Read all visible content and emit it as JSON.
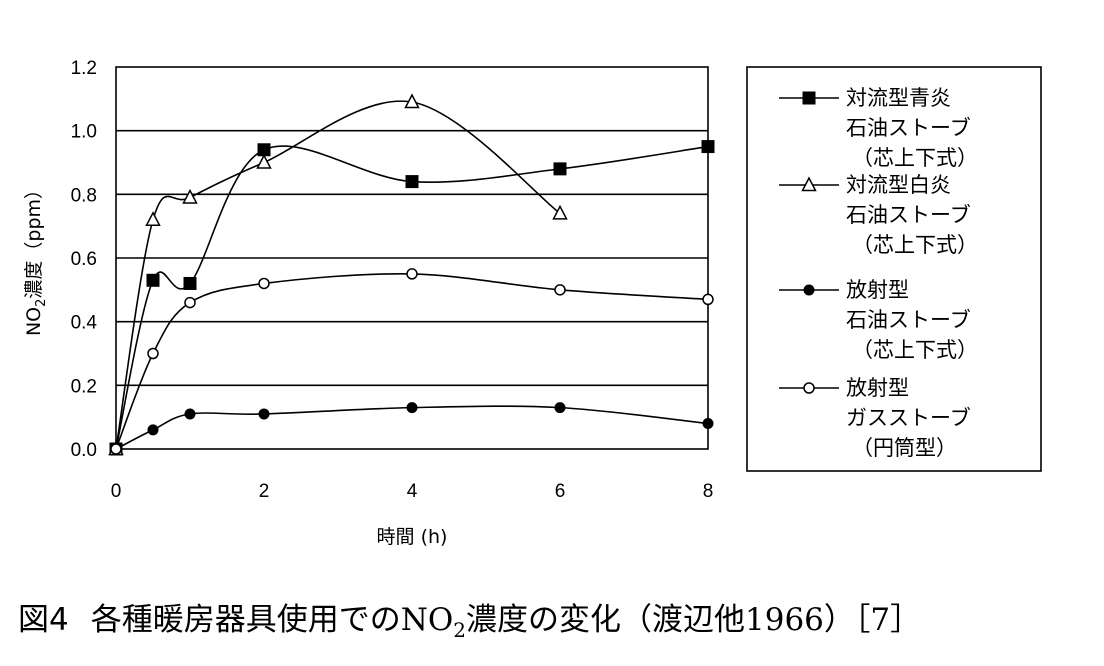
{
  "caption": {
    "fig": "図4",
    "text_a": "各種暖房器具使用での",
    "text_no": "NO",
    "text_sub": "2",
    "text_b": "濃度の変化（渡辺他1966）［7］"
  },
  "chart_data": {
    "type": "line",
    "title": "",
    "xlabel": "時間 (h)",
    "ylabel": {
      "prefix": "NO",
      "sub": "2",
      "suffix": "濃度（ppm）"
    },
    "xlim": [
      0,
      8
    ],
    "ylim": [
      0,
      1.2
    ],
    "xticks": [
      "0",
      "2",
      "4",
      "6",
      "8"
    ],
    "yticks": [
      "0.0",
      "0.2",
      "0.4",
      "0.6",
      "0.8",
      "1.0",
      "1.2"
    ],
    "grid": "horizontal",
    "legend_position": "right",
    "series": [
      {
        "name": [
          "対流型青炎",
          "石油ストーブ",
          "（芯上下式）"
        ],
        "marker": "filled-square",
        "points": [
          [
            0,
            0.0
          ],
          [
            0.5,
            0.53
          ],
          [
            1,
            0.52
          ],
          [
            2,
            0.94
          ],
          [
            4,
            0.84
          ],
          [
            6,
            0.88
          ],
          [
            8,
            0.95
          ]
        ]
      },
      {
        "name": [
          "対流型白炎",
          "石油ストーブ",
          "（芯上下式）"
        ],
        "marker": "open-triangle",
        "points": [
          [
            0,
            0.0
          ],
          [
            0.5,
            0.72
          ],
          [
            1,
            0.79
          ],
          [
            2,
            0.9
          ],
          [
            4,
            1.09
          ],
          [
            6,
            0.74
          ]
        ]
      },
      {
        "name": [
          "放射型",
          "石油ストーブ",
          "（芯上下式）"
        ],
        "marker": "filled-circle",
        "points": [
          [
            0,
            0.0
          ],
          [
            0.5,
            0.06
          ],
          [
            1,
            0.11
          ],
          [
            2,
            0.11
          ],
          [
            4,
            0.13
          ],
          [
            6,
            0.13
          ],
          [
            8,
            0.08
          ]
        ]
      },
      {
        "name": [
          "放射型",
          "ガスストーブ",
          "（円筒型）"
        ],
        "marker": "open-circle",
        "points": [
          [
            0,
            0.0
          ],
          [
            0.5,
            0.3
          ],
          [
            1,
            0.46
          ],
          [
            2,
            0.52
          ],
          [
            4,
            0.55
          ],
          [
            6,
            0.5
          ],
          [
            8,
            0.47
          ]
        ]
      }
    ]
  }
}
